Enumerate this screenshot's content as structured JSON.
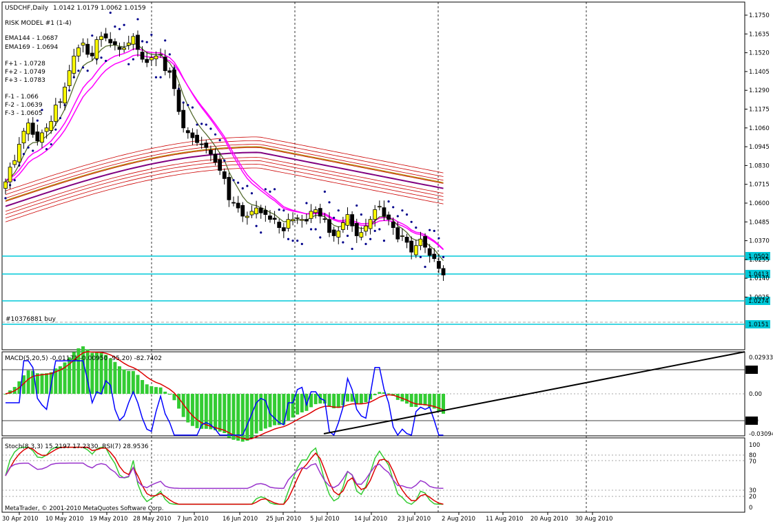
{
  "window": {
    "title": "USDCHF,Daily",
    "ohlc": "1.0142 1.0179 1.0062 1.0159"
  },
  "main_panel": {
    "indicator_name": "RISK MODEL #1 (1-4)",
    "legend_lines": [
      "EMA144 - 1.0687",
      "EMA169 - 1.0694",
      "F+1 - 1.0728",
      "F+2 - 1.0749",
      "F+3 - 1.0783",
      "F-1 - 1.066",
      "F-2 - 1.0639",
      "F-3 - 1.0605"
    ],
    "order_label": "#10376881 buy",
    "price_ticks": [
      "1.1750",
      "1.1635",
      "1.1520",
      "1.1405",
      "1.1290",
      "1.1175",
      "1.1060",
      "1.0945",
      "1.0830",
      "1.0715",
      "1.0600",
      "1.0485",
      "1.0370",
      "1.0255",
      "1.0140",
      "1.0025"
    ],
    "level_lines": [
      {
        "label": "1.0502",
        "color": "#00c8d8"
      },
      {
        "label": "1.0413",
        "color": "#00c8d8"
      },
      {
        "label": "1.0274",
        "color": "#00c8d8"
      },
      {
        "label": "1.0151",
        "color": "#00c8d8"
      }
    ]
  },
  "macd_panel": {
    "header": "MACD(5,20,5) -0.01171 -0.00950 -95.20) -82.7402",
    "ticks": [
      "0.02933",
      "20",
      "0.00",
      "-80",
      "-0.03094"
    ]
  },
  "stoch_panel": {
    "header": "Stoch(8,3,3) 15.2197 17.2330, RSI(7) 28.9536",
    "ticks": [
      "100",
      "80",
      "70",
      "30",
      "20",
      "0"
    ]
  },
  "x_axis": {
    "labels": [
      "30 Apr 2010",
      "10 May 2010",
      "19 May 2010",
      "28 May 2010",
      "7 Jun 2010",
      "16 Jun 2010",
      "25 Jun 2010",
      "5 Jul 2010",
      "14 Jul 2010",
      "23 Jul 2010",
      "2 Aug 2010",
      "11 Aug 2010",
      "20 Aug 2010",
      "30 Aug 2010"
    ]
  },
  "copyright": "MetaTrader, © 2001-2010 MetaQuotes Software Corp.",
  "colors": {
    "bull_candle": "#ffff00",
    "bear_candle": "#000000",
    "ema_slow": "#800080",
    "ema_magenta": "#ff00ff",
    "fib_bands": "#cc0000",
    "level": "#00c8d8",
    "macd_hist": "#33cc33",
    "macd_signal": "#dd0000",
    "macd_line": "#0000ff",
    "stoch_k": "#33cc33",
    "stoch_d": "#dd0000",
    "rsi": "#9933cc"
  },
  "chart_data": {
    "type": "candlestick",
    "symbol": "USDCHF",
    "timeframe": "Daily",
    "y_range": [
      1.0025,
      1.1808
    ],
    "closes_approx": [
      1.073,
      1.082,
      1.086,
      1.096,
      1.104,
      1.109,
      1.102,
      1.098,
      1.103,
      1.106,
      1.11,
      1.12,
      1.122,
      1.131,
      1.141,
      1.15,
      1.155,
      1.158,
      1.151,
      1.15,
      1.16,
      1.162,
      1.161,
      1.158,
      1.157,
      1.154,
      1.155,
      1.158,
      1.162,
      1.154,
      1.148,
      1.146,
      1.149,
      1.15,
      1.151,
      1.141,
      1.14,
      1.13,
      1.116,
      1.106,
      1.103,
      1.1,
      1.097,
      1.096,
      1.094,
      1.09,
      1.085,
      1.08,
      1.075,
      1.062,
      1.06,
      1.057,
      1.052,
      1.052,
      1.055,
      1.057,
      1.054,
      1.053,
      1.05,
      1.05,
      1.045,
      1.043,
      1.05,
      1.05,
      1.051,
      1.05,
      1.049,
      1.055,
      1.056,
      1.052,
      1.05,
      1.042,
      1.04,
      1.043,
      1.048,
      1.053,
      1.046,
      1.04,
      1.042,
      1.046,
      1.05,
      1.056,
      1.058,
      1.052,
      1.05,
      1.045,
      1.038,
      1.04,
      1.036,
      1.03,
      1.034,
      1.038,
      1.033,
      1.028,
      1.026,
      1.02,
      1.016
    ]
  }
}
